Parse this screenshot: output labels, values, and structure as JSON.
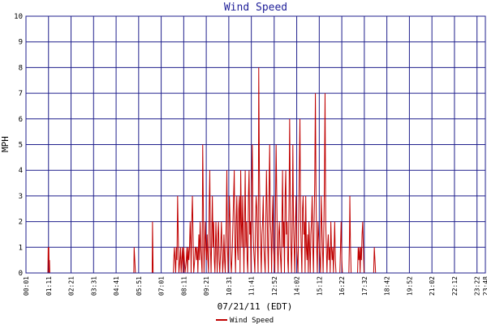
{
  "chart_data": {
    "type": "line",
    "title": "Wind Speed",
    "ylabel": "MPH",
    "xlabel": "07/21/11 (EDT)",
    "ylim": [
      0,
      10
    ],
    "y_ticks": [
      0,
      1,
      2,
      3,
      4,
      5,
      6,
      7,
      8,
      9,
      10
    ],
    "x_ticks": [
      "00:01",
      "01:11",
      "02:21",
      "03:31",
      "04:41",
      "05:51",
      "07:01",
      "08:11",
      "09:21",
      "10:31",
      "11:41",
      "12:52",
      "14:02",
      "15:12",
      "16:22",
      "17:32",
      "18:42",
      "19:52",
      "21:02",
      "22:12",
      "23:22",
      "23:48"
    ],
    "grid": true,
    "legend_position": "bottom-center",
    "colors": {
      "grid": "#1f1f8c",
      "series": "#c00000",
      "title": "#22229a"
    },
    "series": [
      {
        "name": "Wind Speed",
        "x_unit": "minutes since 00:01",
        "points": [
          [
            0,
            0
          ],
          [
            68,
            0
          ],
          [
            69,
            1
          ],
          [
            70,
            0.5
          ],
          [
            71,
            1
          ],
          [
            72,
            0
          ],
          [
            73,
            0.5
          ],
          [
            74,
            0
          ],
          [
            335,
            0
          ],
          [
            336,
            1
          ],
          [
            338,
            0.5
          ],
          [
            340,
            0
          ],
          [
            392,
            0
          ],
          [
            393,
            2
          ],
          [
            395,
            0
          ],
          [
            458,
            0
          ],
          [
            459,
            0.5
          ],
          [
            461,
            1
          ],
          [
            463,
            0.5
          ],
          [
            465,
            0
          ],
          [
            467,
            1
          ],
          [
            469,
            0.5
          ],
          [
            471,
            3
          ],
          [
            473,
            1.5
          ],
          [
            475,
            0
          ],
          [
            478,
            0.5
          ],
          [
            480,
            1
          ],
          [
            482,
            0
          ],
          [
            484,
            0.5
          ],
          [
            486,
            1
          ],
          [
            488,
            0
          ],
          [
            490,
            1
          ],
          [
            492,
            0.5
          ],
          [
            494,
            0
          ],
          [
            498,
            0.5
          ],
          [
            500,
            1
          ],
          [
            502,
            0
          ],
          [
            504,
            1
          ],
          [
            506,
            0.5
          ],
          [
            508,
            1
          ],
          [
            510,
            2
          ],
          [
            512,
            1
          ],
          [
            513,
            0
          ],
          [
            515,
            2
          ],
          [
            517,
            3
          ],
          [
            519,
            1.5
          ],
          [
            521,
            0
          ],
          [
            524,
            0.5
          ],
          [
            526,
            1
          ],
          [
            528,
            1
          ],
          [
            530,
            0.5
          ],
          [
            532,
            1
          ],
          [
            534,
            0
          ],
          [
            537,
            1.5
          ],
          [
            539,
            0.5
          ],
          [
            541,
            2
          ],
          [
            543,
            1
          ],
          [
            545,
            0.5
          ],
          [
            547,
            0
          ],
          [
            549,
            5
          ],
          [
            551,
            2.5
          ],
          [
            553,
            0
          ],
          [
            555,
            1
          ],
          [
            557,
            2
          ],
          [
            559,
            1
          ],
          [
            561,
            0.5
          ],
          [
            563,
            1.5
          ],
          [
            565,
            0.5
          ],
          [
            567,
            0
          ],
          [
            569,
            2.5
          ],
          [
            571,
            4
          ],
          [
            573,
            1
          ],
          [
            575,
            0
          ],
          [
            577,
            1.5
          ],
          [
            579,
            3
          ],
          [
            581,
            1
          ],
          [
            583,
            2
          ],
          [
            585,
            0.5
          ],
          [
            587,
            0
          ],
          [
            590,
            2
          ],
          [
            592,
            1
          ],
          [
            594,
            0
          ],
          [
            596,
            1.5
          ],
          [
            598,
            2
          ],
          [
            600,
            0.5
          ],
          [
            602,
            0
          ],
          [
            605,
            1
          ],
          [
            607,
            2
          ],
          [
            609,
            1
          ],
          [
            611,
            0
          ],
          [
            613,
            0.5
          ],
          [
            615,
            1.5
          ],
          [
            617,
            0.5
          ],
          [
            619,
            0
          ],
          [
            622,
            2
          ],
          [
            624,
            4
          ],
          [
            626,
            1
          ],
          [
            628,
            0
          ],
          [
            630,
            1.5
          ],
          [
            632,
            3
          ],
          [
            634,
            2
          ],
          [
            636,
            0.5
          ],
          [
            638,
            0
          ],
          [
            641,
            1
          ],
          [
            643,
            2
          ],
          [
            645,
            3
          ],
          [
            647,
            4
          ],
          [
            649,
            1
          ],
          [
            651,
            0
          ],
          [
            653,
            2
          ],
          [
            655,
            3
          ],
          [
            657,
            1
          ],
          [
            659,
            0.5
          ],
          [
            661,
            2.5
          ],
          [
            663,
            3
          ],
          [
            665,
            0
          ],
          [
            667,
            4
          ],
          [
            669,
            2
          ],
          [
            671,
            1
          ],
          [
            673,
            3
          ],
          [
            675,
            1.5
          ],
          [
            677,
            0
          ],
          [
            679,
            2
          ],
          [
            681,
            4
          ],
          [
            683,
            1
          ],
          [
            685,
            2
          ],
          [
            687,
            0.5
          ],
          [
            689,
            0
          ],
          [
            691,
            3
          ],
          [
            693,
            4
          ],
          [
            695,
            1.5
          ],
          [
            697,
            2
          ],
          [
            699,
            0
          ],
          [
            701,
            3.5
          ],
          [
            703,
            5
          ],
          [
            705,
            2
          ],
          [
            707,
            1
          ],
          [
            709,
            0.5
          ],
          [
            711,
            0
          ],
          [
            713,
            2
          ],
          [
            715,
            3
          ],
          [
            717,
            2.5
          ],
          [
            719,
            1
          ],
          [
            721,
            0
          ],
          [
            722,
            3
          ],
          [
            723,
            8
          ],
          [
            725,
            4
          ],
          [
            727,
            2
          ],
          [
            729,
            1
          ],
          [
            731,
            0
          ],
          [
            733,
            1.5
          ],
          [
            735,
            2
          ],
          [
            737,
            3
          ],
          [
            739,
            1
          ],
          [
            741,
            0.5
          ],
          [
            743,
            0
          ],
          [
            745,
            2
          ],
          [
            747,
            4
          ],
          [
            749,
            2.5
          ],
          [
            751,
            1
          ],
          [
            753,
            0
          ],
          [
            755,
            3
          ],
          [
            757,
            5
          ],
          [
            759,
            2
          ],
          [
            761,
            1.5
          ],
          [
            763,
            0
          ],
          [
            765,
            2
          ],
          [
            767,
            3
          ],
          [
            769,
            1
          ],
          [
            771,
            0.5
          ],
          [
            773,
            0
          ],
          [
            775,
            2.5
          ],
          [
            777,
            5
          ],
          [
            779,
            3
          ],
          [
            781,
            1
          ],
          [
            783,
            0
          ],
          [
            785,
            1.5
          ],
          [
            787,
            2
          ],
          [
            789,
            1
          ],
          [
            791,
            0.5
          ],
          [
            793,
            0
          ],
          [
            795,
            2
          ],
          [
            797,
            4
          ],
          [
            799,
            1
          ],
          [
            801,
            2
          ],
          [
            803,
            0
          ],
          [
            805,
            3
          ],
          [
            807,
            4
          ],
          [
            809,
            1.5
          ],
          [
            811,
            2
          ],
          [
            813,
            0.5
          ],
          [
            815,
            0
          ],
          [
            817,
            2.5
          ],
          [
            819,
            6
          ],
          [
            821,
            3
          ],
          [
            823,
            1
          ],
          [
            825,
            0
          ],
          [
            827,
            1.5
          ],
          [
            829,
            5
          ],
          [
            831,
            2
          ],
          [
            833,
            1
          ],
          [
            835,
            0
          ],
          [
            837,
            2
          ],
          [
            839,
            3
          ],
          [
            841,
            1
          ],
          [
            843,
            0.5
          ],
          [
            845,
            0
          ],
          [
            847,
            2
          ],
          [
            849,
            4
          ],
          [
            851,
            6
          ],
          [
            853,
            2
          ],
          [
            855,
            1
          ],
          [
            857,
            0
          ],
          [
            859,
            2.5
          ],
          [
            861,
            3
          ],
          [
            863,
            1.5
          ],
          [
            865,
            2
          ],
          [
            867,
            0
          ],
          [
            869,
            3
          ],
          [
            871,
            1
          ],
          [
            873,
            0.5
          ],
          [
            875,
            1.5
          ],
          [
            877,
            0
          ],
          [
            879,
            2
          ],
          [
            881,
            1
          ],
          [
            883,
            0
          ],
          [
            885,
            1.5
          ],
          [
            887,
            2
          ],
          [
            889,
            3
          ],
          [
            891,
            1
          ],
          [
            893,
            0
          ],
          [
            895,
            2
          ],
          [
            897,
            3.5
          ],
          [
            899,
            7
          ],
          [
            901,
            3
          ],
          [
            903,
            1
          ],
          [
            905,
            0
          ],
          [
            907,
            2
          ],
          [
            909,
            1.5
          ],
          [
            911,
            1
          ],
          [
            913,
            0.5
          ],
          [
            915,
            0
          ],
          [
            917,
            3
          ],
          [
            919,
            2
          ],
          [
            921,
            1
          ],
          [
            923,
            0
          ],
          [
            925,
            1.5
          ],
          [
            927,
            3.5
          ],
          [
            929,
            7
          ],
          [
            931,
            2
          ],
          [
            933,
            1
          ],
          [
            935,
            0
          ],
          [
            937,
            1
          ],
          [
            939,
            1.5
          ],
          [
            941,
            0.5
          ],
          [
            943,
            1
          ],
          [
            945,
            0
          ],
          [
            947,
            2
          ],
          [
            949,
            1
          ],
          [
            951,
            0.5
          ],
          [
            953,
            1
          ],
          [
            955,
            0
          ],
          [
            957,
            1
          ],
          [
            959,
            2
          ],
          [
            961,
            0.5
          ],
          [
            963,
            0
          ],
          [
            975,
            0
          ],
          [
            977,
            1
          ],
          [
            979,
            2
          ],
          [
            981,
            0.5
          ],
          [
            983,
            0
          ],
          [
            1003,
            0
          ],
          [
            1005,
            1.5
          ],
          [
            1006,
            3
          ],
          [
            1008,
            1
          ],
          [
            1010,
            0
          ],
          [
            1030,
            0
          ],
          [
            1032,
            1
          ],
          [
            1034,
            0.5
          ],
          [
            1036,
            1
          ],
          [
            1038,
            0
          ],
          [
            1040,
            1
          ],
          [
            1042,
            0.5
          ],
          [
            1044,
            1.5
          ],
          [
            1046,
            2
          ],
          [
            1048,
            1
          ],
          [
            1050,
            0
          ],
          [
            1080,
            0
          ],
          [
            1082,
            1
          ],
          [
            1084,
            0.5
          ],
          [
            1086,
            0
          ],
          [
            1090,
            0
          ],
          [
            1427,
            0
          ]
        ]
      }
    ]
  }
}
